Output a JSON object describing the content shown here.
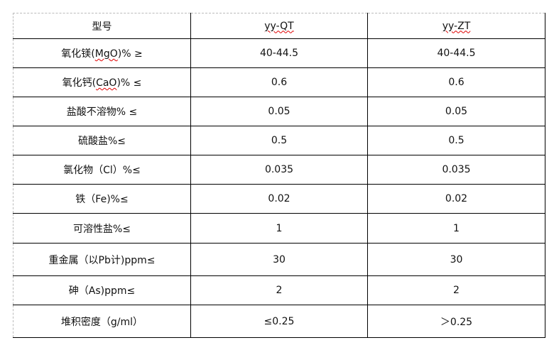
{
  "table": {
    "header": [
      "型号",
      "yy-QT",
      "yy-ZT"
    ],
    "rows": [
      {
        "item": [
          "氧化镁(",
          "MgO",
          ")% ≥"
        ],
        "qt": "40-44.5",
        "zt": "40-44.5"
      },
      {
        "item": [
          "氧化钙(",
          "CaO",
          ")% ≤"
        ],
        "qt": "0.6",
        "zt": "0.6"
      },
      {
        "item": [
          "盐酸不溶物% ≤",
          "",
          ""
        ],
        "qt": "0.05",
        "zt": "0.05"
      },
      {
        "item": [
          "硫酸盐%≤",
          "",
          ""
        ],
        "qt": "0.5",
        "zt": "0.5"
      },
      {
        "item": [
          "氯化物（Cl）%≤",
          "",
          ""
        ],
        "qt": "0.035",
        "zt": "0.035"
      },
      {
        "item": [
          "铁（Fe)%≤",
          "",
          ""
        ],
        "qt": "0.02",
        "zt": "0.02"
      },
      {
        "item": [
          "可溶性盐%≤",
          "",
          ""
        ],
        "qt": "1",
        "zt": "1"
      },
      {
        "item": [
          "重金属（以Pb计)ppm≤",
          "",
          ""
        ],
        "qt": "30",
        "zt": "30"
      },
      {
        "item": [
          "砷（As)ppm≤",
          "",
          ""
        ],
        "qt": "2",
        "zt": "2"
      },
      {
        "item": [
          "堆积密度（g/ml）",
          "",
          ""
        ],
        "qt": "≤0.25",
        "zt": "＞0.25"
      }
    ]
  },
  "colors": {
    "spellcheck_underline": "#e00000"
  }
}
